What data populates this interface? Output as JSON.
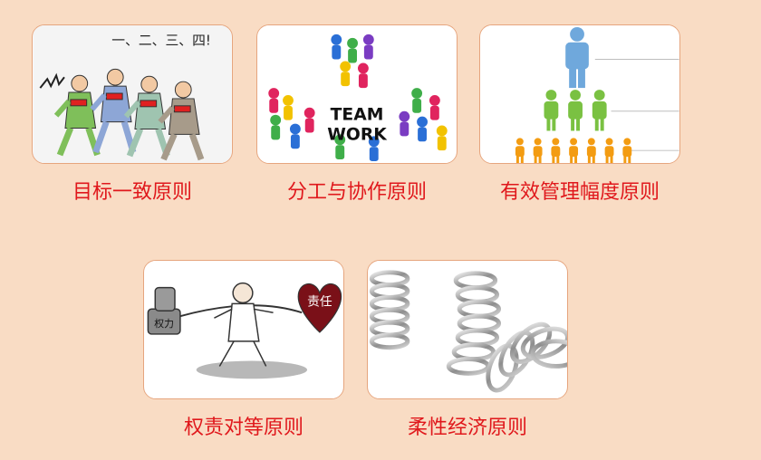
{
  "principles": [
    {
      "title": "目标一致原则",
      "illustration": "marching-crowd-image",
      "shout": "一、二、三、四!"
    },
    {
      "title": "分工与协作原则",
      "illustration": "teamwork-figures-image",
      "sign_line1": "TEAM",
      "sign_line2": "WORK"
    },
    {
      "title": "有效管理幅度原则",
      "illustration": "hierarchy-pyramid-image"
    },
    {
      "title": "权责对等原则",
      "illustration": "power-responsibility-balance-image",
      "power_label": "权力",
      "heart_label": "责任"
    },
    {
      "title": "柔性经济原则",
      "illustration": "metal-springs-image"
    }
  ],
  "colors": {
    "background": "#f9dcc4",
    "caption": "#e0181c",
    "card_border": "#e6a57e"
  }
}
